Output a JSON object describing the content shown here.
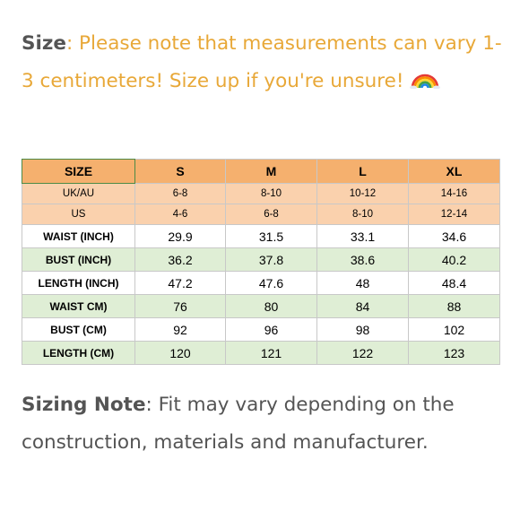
{
  "intro": {
    "label": "Size",
    "separator": ":",
    "text": " Please note that measurements can vary 1-3 centimeters! Size up if you're unsure!",
    "emoji_icon": "rainbow-emoji-icon"
  },
  "table": {
    "header": [
      "SIZE",
      "S",
      "M",
      "L",
      "XL"
    ],
    "sub_rows": [
      {
        "label": "UK/AU",
        "values": [
          "6-8",
          "8-10",
          "10-12",
          "14-16"
        ]
      },
      {
        "label": "US",
        "values": [
          "4-6",
          "6-8",
          "8-10",
          "12-14"
        ]
      }
    ],
    "measure_rows": [
      {
        "label": "WAIST (INCH)",
        "values": [
          "29.9",
          "31.5",
          "33.1",
          "34.6"
        ]
      },
      {
        "label": "BUST (INCH)",
        "values": [
          "36.2",
          "37.8",
          "38.6",
          "40.2"
        ]
      },
      {
        "label": "LENGTH (INCH)",
        "values": [
          "47.2",
          "47.6",
          "48",
          "48.4"
        ]
      },
      {
        "label": "WAIST CM)",
        "values": [
          "76",
          "80",
          "84",
          "88"
        ]
      },
      {
        "label": "BUST (CM)",
        "values": [
          "92",
          "96",
          "98",
          "102"
        ]
      },
      {
        "label": "LENGTH (CM)",
        "values": [
          "120",
          "121",
          "122",
          "123"
        ]
      }
    ],
    "colors": {
      "header_bg": "#f5b06e",
      "sub_bg": "#fad1ad",
      "green_bg": "#dfeed5",
      "white_bg": "#ffffff"
    }
  },
  "note": {
    "label": "Sizing Note",
    "separator": ":",
    "text": " Fit may vary depending on the construction, materials and manufacturer."
  }
}
